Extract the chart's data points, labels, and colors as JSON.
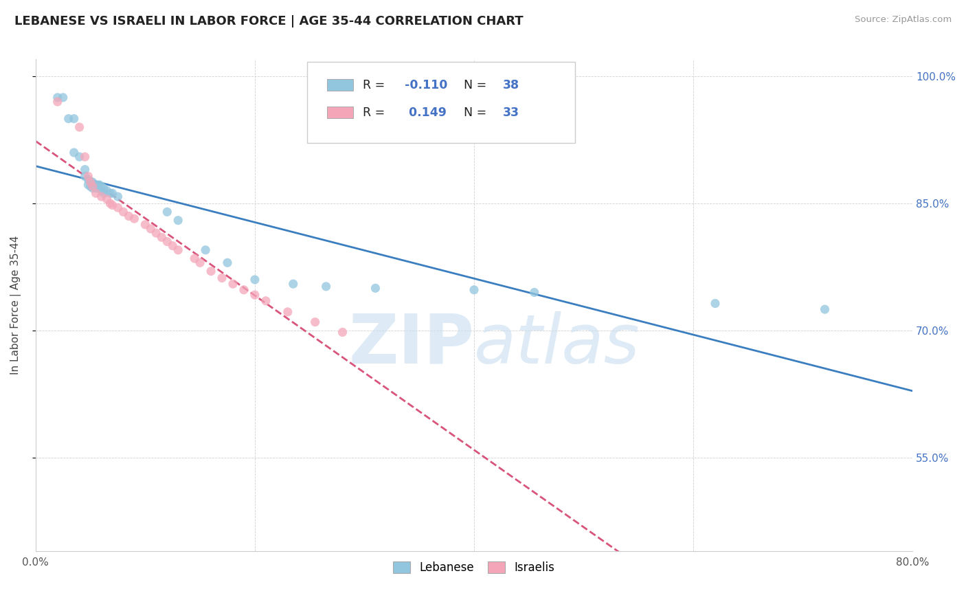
{
  "title": "LEBANESE VS ISRAELI IN LABOR FORCE | AGE 35-44 CORRELATION CHART",
  "source_text": "Source: ZipAtlas.com",
  "ylabel": "In Labor Force | Age 35-44",
  "xlim": [
    0.0,
    0.8
  ],
  "ylim": [
    0.44,
    1.02
  ],
  "ytick_positions": [
    0.55,
    0.7,
    0.85,
    1.0
  ],
  "ytick_labels": [
    "55.0%",
    "70.0%",
    "85.0%",
    "100.0%"
  ],
  "xtick_positions": [
    0.0,
    0.2,
    0.4,
    0.6,
    0.8
  ],
  "xtick_labels": [
    "0.0%",
    "",
    "",
    "",
    "80.0%"
  ],
  "legend_r_blue": "-0.110",
  "legend_n_blue": "38",
  "legend_r_pink": "0.149",
  "legend_n_pink": "33",
  "blue_color": "#92c5de",
  "pink_color": "#f4a6b8",
  "trendline_blue_color": "#3a7ec0",
  "trendline_pink_color": "#d9547a",
  "watermark_zip": "ZIP",
  "watermark_atlas": "atlas",
  "blue_scatter": [
    [
      0.02,
      0.975
    ],
    [
      0.025,
      0.975
    ],
    [
      0.03,
      0.95
    ],
    [
      0.035,
      0.95
    ],
    [
      0.035,
      0.91
    ],
    [
      0.04,
      0.905
    ],
    [
      0.045,
      0.89
    ],
    [
      0.045,
      0.882
    ],
    [
      0.048,
      0.878
    ],
    [
      0.048,
      0.872
    ],
    [
      0.05,
      0.876
    ],
    [
      0.05,
      0.87
    ],
    [
      0.052,
      0.875
    ],
    [
      0.052,
      0.868
    ],
    [
      0.055,
      0.872
    ],
    [
      0.055,
      0.868
    ],
    [
      0.058,
      0.872
    ],
    [
      0.058,
      0.868
    ],
    [
      0.06,
      0.87
    ],
    [
      0.06,
      0.865
    ],
    [
      0.062,
      0.868
    ],
    [
      0.062,
      0.862
    ],
    [
      0.065,
      0.865
    ],
    [
      0.068,
      0.862
    ],
    [
      0.07,
      0.862
    ],
    [
      0.075,
      0.858
    ],
    [
      0.12,
      0.84
    ],
    [
      0.13,
      0.83
    ],
    [
      0.155,
      0.795
    ],
    [
      0.175,
      0.78
    ],
    [
      0.2,
      0.76
    ],
    [
      0.235,
      0.755
    ],
    [
      0.265,
      0.752
    ],
    [
      0.31,
      0.75
    ],
    [
      0.4,
      0.748
    ],
    [
      0.455,
      0.745
    ],
    [
      0.62,
      0.732
    ],
    [
      0.72,
      0.725
    ]
  ],
  "pink_scatter": [
    [
      0.02,
      0.97
    ],
    [
      0.04,
      0.94
    ],
    [
      0.045,
      0.905
    ],
    [
      0.048,
      0.882
    ],
    [
      0.05,
      0.875
    ],
    [
      0.052,
      0.87
    ],
    [
      0.055,
      0.862
    ],
    [
      0.06,
      0.858
    ],
    [
      0.065,
      0.855
    ],
    [
      0.068,
      0.85
    ],
    [
      0.07,
      0.848
    ],
    [
      0.075,
      0.845
    ],
    [
      0.08,
      0.84
    ],
    [
      0.085,
      0.835
    ],
    [
      0.09,
      0.832
    ],
    [
      0.1,
      0.825
    ],
    [
      0.105,
      0.82
    ],
    [
      0.11,
      0.815
    ],
    [
      0.115,
      0.81
    ],
    [
      0.12,
      0.805
    ],
    [
      0.125,
      0.8
    ],
    [
      0.13,
      0.795
    ],
    [
      0.145,
      0.785
    ],
    [
      0.15,
      0.78
    ],
    [
      0.16,
      0.77
    ],
    [
      0.17,
      0.762
    ],
    [
      0.18,
      0.755
    ],
    [
      0.19,
      0.748
    ],
    [
      0.2,
      0.742
    ],
    [
      0.21,
      0.735
    ],
    [
      0.23,
      0.722
    ],
    [
      0.255,
      0.71
    ],
    [
      0.28,
      0.698
    ]
  ]
}
